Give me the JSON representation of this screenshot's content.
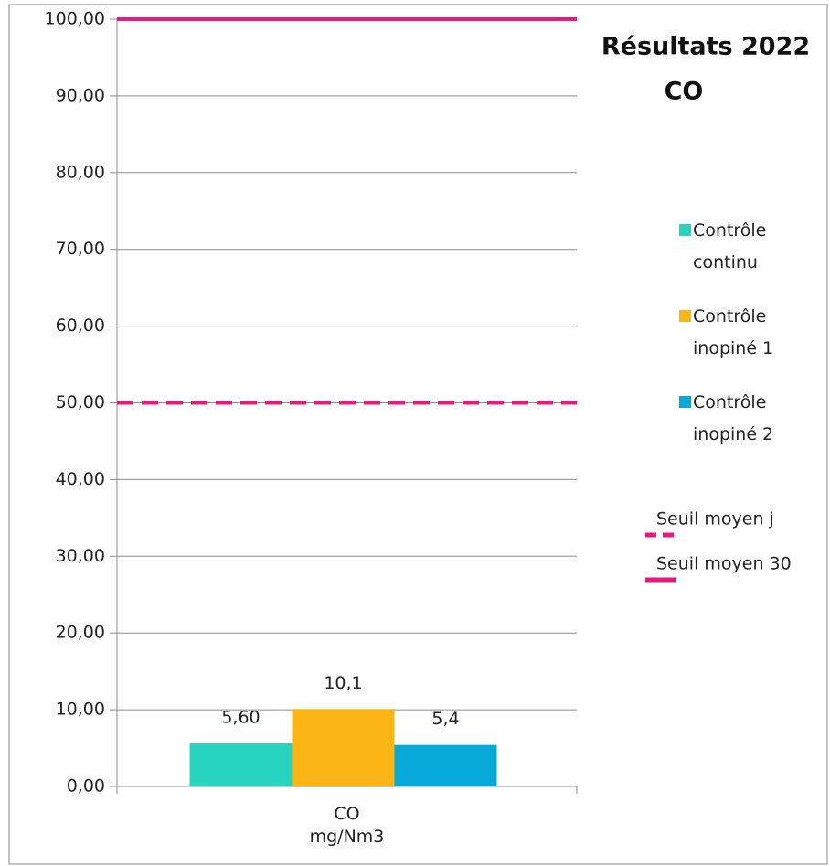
{
  "chart_data": {
    "type": "bar",
    "title": [
      "Résultats 2022",
      "CO"
    ],
    "categories": [
      "CO\nmg/Nm3"
    ],
    "series": [
      {
        "name": "Contrôle\ncontinu",
        "color": "#26d4c0",
        "values": [
          5.6
        ],
        "value_labels": [
          "5,60"
        ]
      },
      {
        "name": "Contrôle\ninopiné 1",
        "color": "#fbb615",
        "values": [
          10.1
        ],
        "value_labels": [
          "10,1"
        ]
      },
      {
        "name": "Contrôle\ninopiné 2",
        "color": "#05a9d8",
        "values": [
          5.4
        ],
        "value_labels": [
          "5,4"
        ]
      },
      {
        "name": "Seuil moyen j",
        "color": "#e8197c",
        "type": "line",
        "dashed": true,
        "values": [
          50
        ]
      },
      {
        "name": "Seuil moyen 30",
        "color": "#e8197c",
        "type": "line",
        "dashed": false,
        "values": [
          100
        ]
      }
    ],
    "ylim": [
      0,
      100
    ],
    "yticks": [
      {
        "value": 0,
        "label": "0,00"
      },
      {
        "value": 10,
        "label": "10,00"
      },
      {
        "value": 20,
        "label": "20,00"
      },
      {
        "value": 30,
        "label": "30,00"
      },
      {
        "value": 40,
        "label": "40,00"
      },
      {
        "value": 50,
        "label": "50,00"
      },
      {
        "value": 60,
        "label": "60,00"
      },
      {
        "value": 70,
        "label": "70,00"
      },
      {
        "value": 80,
        "label": "80,00"
      },
      {
        "value": 90,
        "label": "90,00"
      },
      {
        "value": 100,
        "label": "100,00"
      }
    ],
    "grid": true
  }
}
